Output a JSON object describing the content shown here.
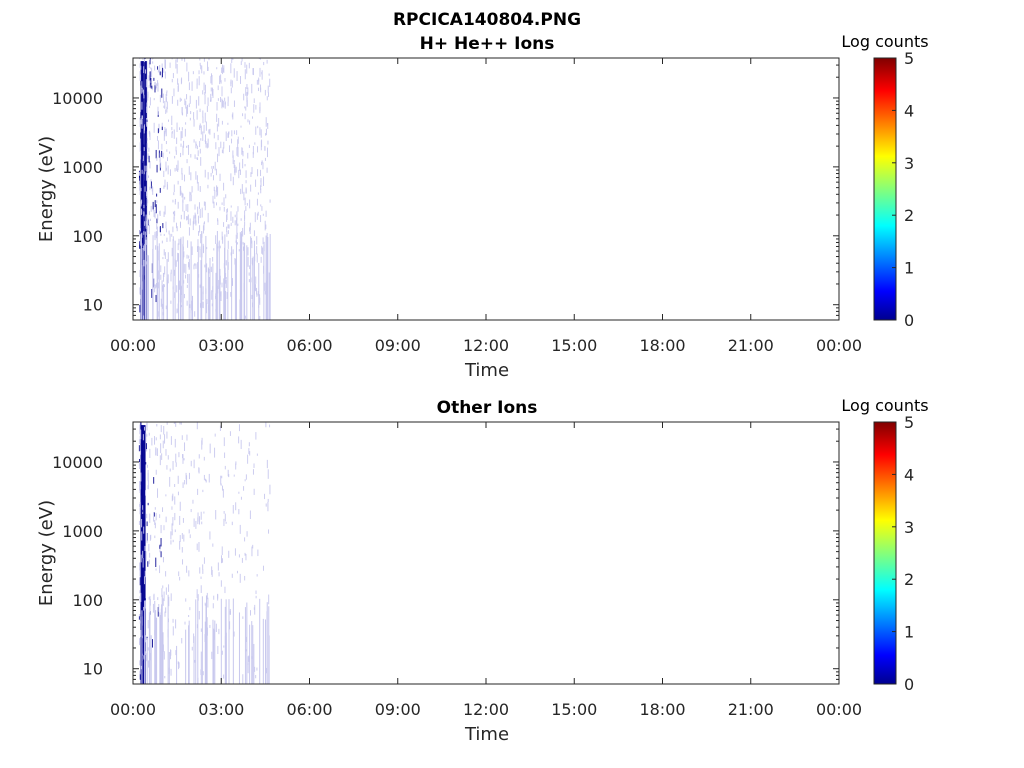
{
  "figure": {
    "title": "RPCICA140804.PNG"
  },
  "panels": [
    {
      "title": "H+ He++ Ions",
      "xlabel": "Time",
      "ylabel": "Energy (eV)",
      "colorbar_label": "Log counts"
    },
    {
      "title": "Other Ions",
      "xlabel": "Time",
      "ylabel": "Energy (eV)",
      "colorbar_label": "Log counts"
    }
  ],
  "chart_data": [
    {
      "type": "heatmap",
      "title": "H+ He++ Ions",
      "xlabel": "Time",
      "ylabel": "Energy (eV)",
      "x_range_hours": [
        0,
        24
      ],
      "x_ticks": [
        "00:00",
        "03:00",
        "06:00",
        "09:00",
        "12:00",
        "15:00",
        "18:00",
        "21:00",
        "00:00"
      ],
      "y_scale": "log",
      "y_range": [
        6,
        38000
      ],
      "y_ticks": [
        10,
        100,
        1000,
        10000
      ],
      "y_tick_labels": [
        "10",
        "100",
        "1000",
        "10000"
      ],
      "colorbar": {
        "label": "Log counts",
        "range": [
          0,
          5
        ],
        "ticks": [
          "0",
          "1",
          "2",
          "3",
          "4",
          "5"
        ],
        "colormap": "jet"
      },
      "data_time_range_hours": [
        0.2,
        4.65
      ],
      "dense_time_range_hours": [
        0.25,
        0.45
      ],
      "max_log_counts_estimate": 0.3,
      "colors": {
        "low": "#00008f",
        "faint": "#c8c8ee"
      }
    },
    {
      "type": "heatmap",
      "title": "Other Ions",
      "xlabel": "Time",
      "ylabel": "Energy (eV)",
      "x_range_hours": [
        0,
        24
      ],
      "x_ticks": [
        "00:00",
        "03:00",
        "06:00",
        "09:00",
        "12:00",
        "15:00",
        "18:00",
        "21:00",
        "00:00"
      ],
      "y_scale": "log",
      "y_range": [
        6,
        38000
      ],
      "y_ticks": [
        10,
        100,
        1000,
        10000
      ],
      "y_tick_labels": [
        "10",
        "100",
        "1000",
        "10000"
      ],
      "colorbar": {
        "label": "Log counts",
        "range": [
          0,
          5
        ],
        "ticks": [
          "0",
          "1",
          "2",
          "3",
          "4",
          "5"
        ],
        "colormap": "jet"
      },
      "data_time_range_hours": [
        0.2,
        4.65
      ],
      "dense_time_range_hours": [
        0.25,
        0.4
      ],
      "max_log_counts_estimate": 0.3,
      "colors": {
        "low": "#00008f",
        "faint": "#c8c8ee"
      }
    }
  ]
}
